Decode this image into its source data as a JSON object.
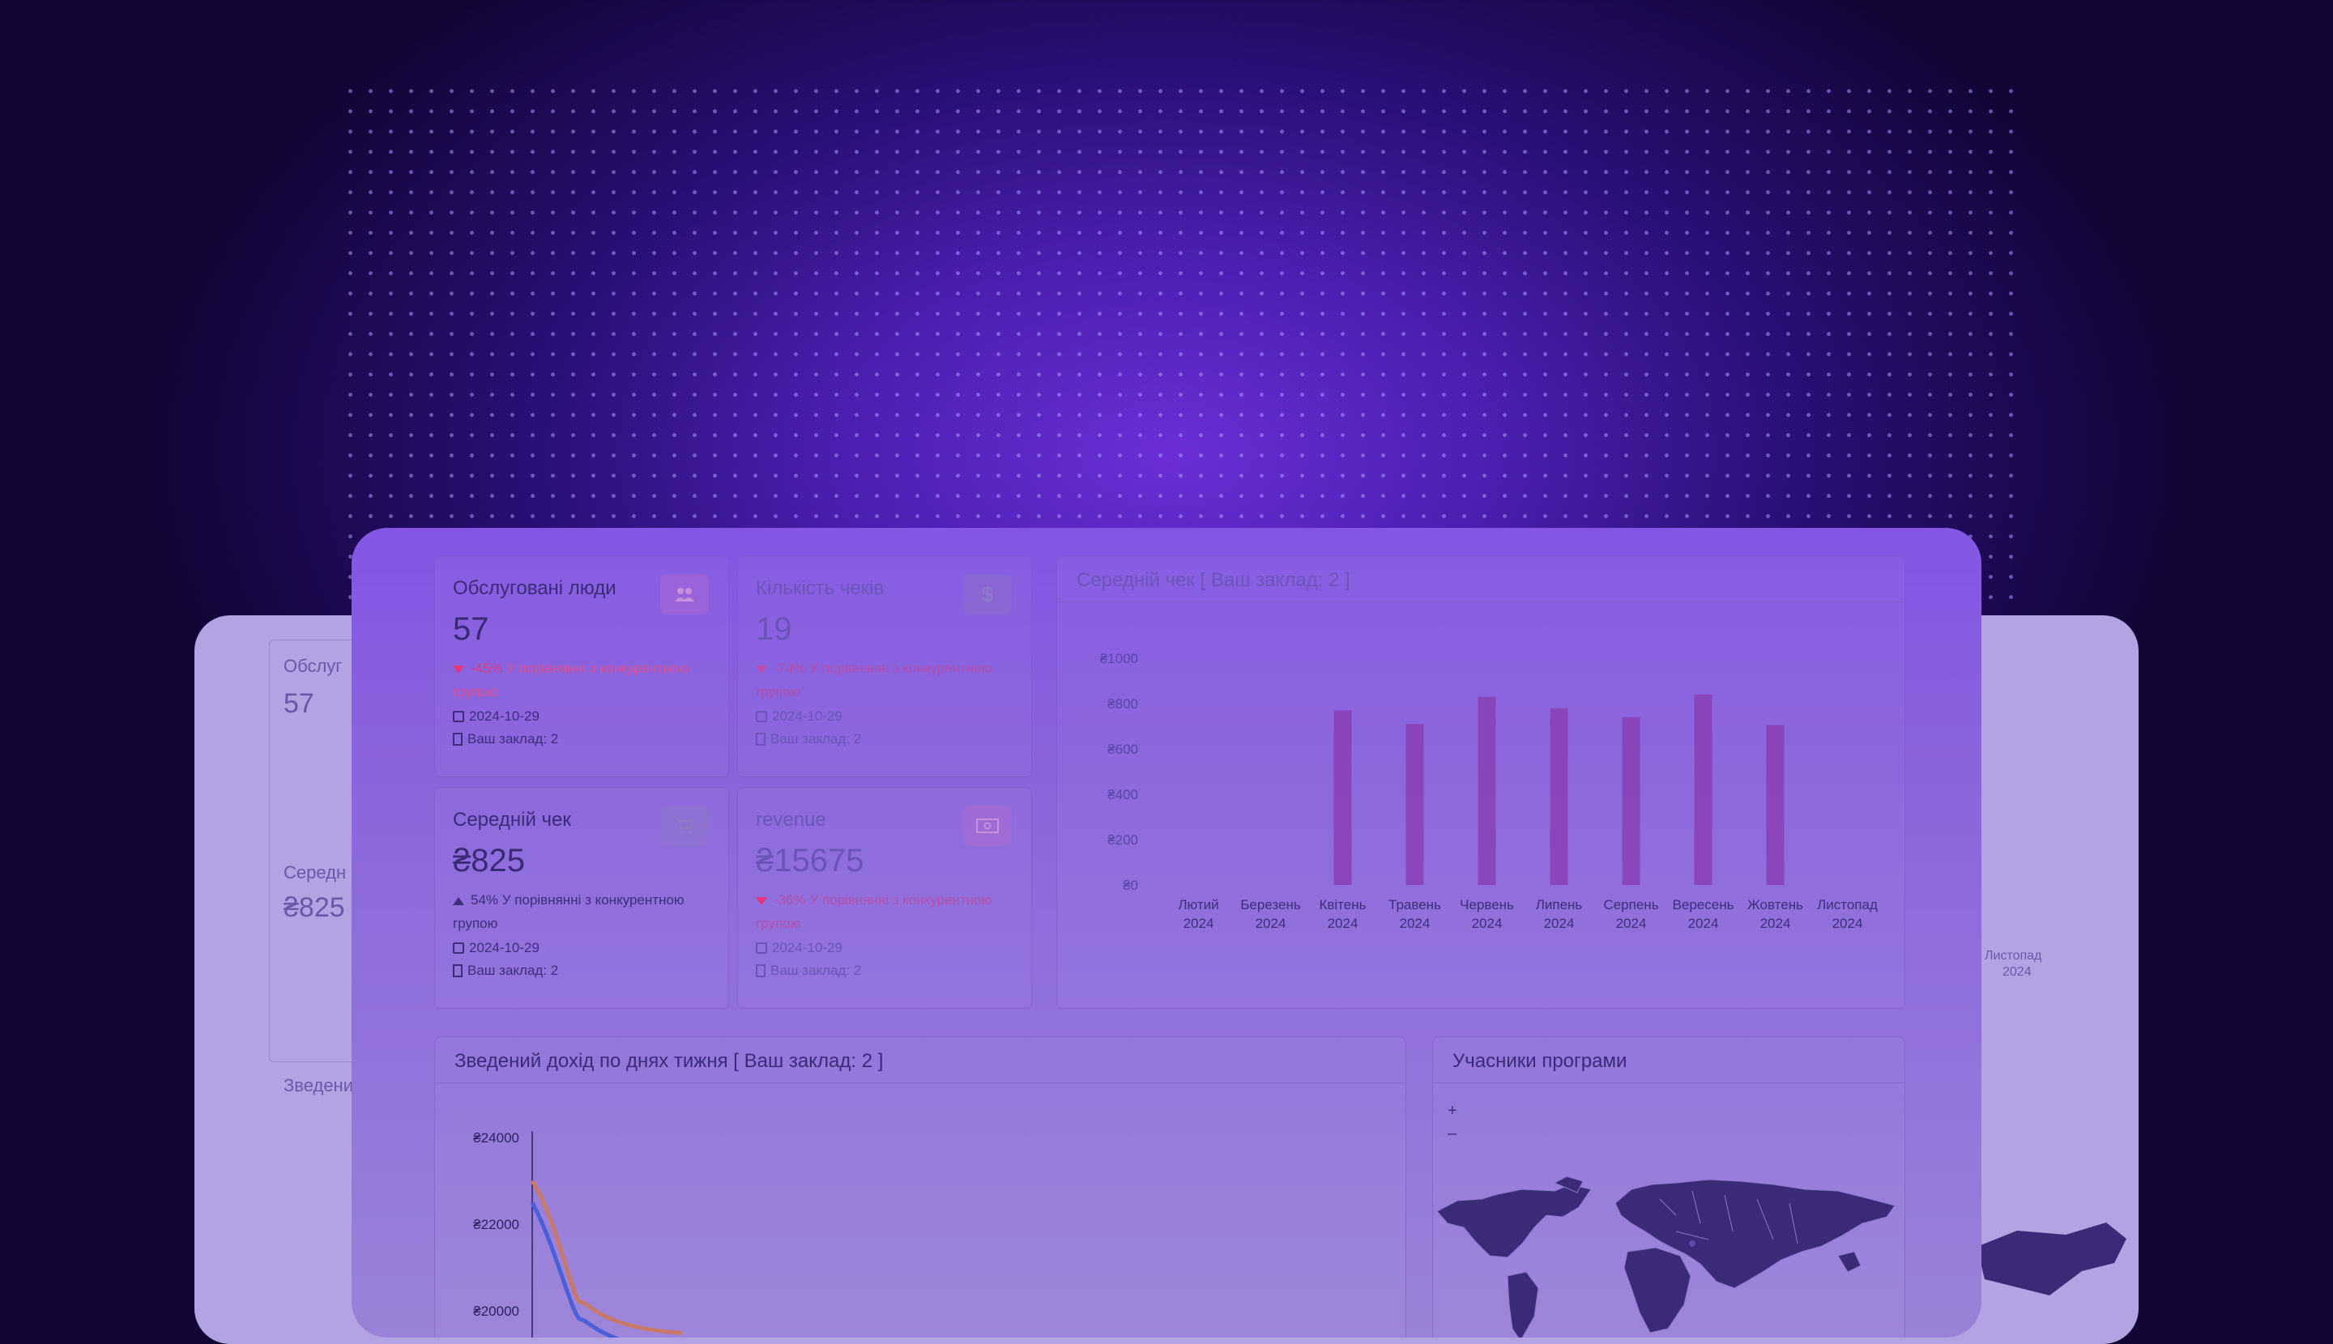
{
  "colors": {
    "bg_accent": "#6a2fd6",
    "bar_color": "#8a3fb4",
    "line_orange": "#c87a6a",
    "line_blue": "#4b5fd8",
    "negative": "#e8367a",
    "map_land": "#3a2a78"
  },
  "kpis": [
    {
      "title": "Обслуговані люди",
      "value": "57",
      "direction": "down",
      "pct": "-45%",
      "delta_text": "У порівнянні з конкурентною групою",
      "date": "2024-10-29",
      "venue": "Ваш заклад: 2",
      "icon": "people-icon"
    },
    {
      "title": "Кількість чеків",
      "value": "19",
      "direction": "down",
      "pct": "-74%",
      "delta_text": "У порівнянні з конкурентною групою",
      "date": "2024-10-29",
      "venue": "Ваш заклад: 2",
      "icon": "dollar-icon"
    },
    {
      "title": "Середній чек",
      "value": "₴825",
      "direction": "up",
      "pct": "54%",
      "delta_text": "У порівнянні з конкурентною групою",
      "date": "2024-10-29",
      "venue": "Ваш заклад: 2",
      "icon": "cart-icon"
    },
    {
      "title": "revenue",
      "value": "₴15675",
      "direction": "down",
      "pct": "-36%",
      "delta_text": "У порівнянні з конкурентною групою",
      "date": "2024-10-29",
      "venue": "Ваш заклад: 2",
      "icon": "cash-icon"
    }
  ],
  "avg_check_card": {
    "title": "Середній чек [ Ваш заклад: 2 ]"
  },
  "weekly_card": {
    "title": "Зведений дохід по днях тижня [ Ваш заклад: 2 ]"
  },
  "map_card": {
    "title": "Учасники програми",
    "zoom_in": "+",
    "zoom_out": "–"
  },
  "background_panel": {
    "kpi1_title": "Обслуг",
    "kpi1_value": "57",
    "kpi2_title": "Середн",
    "kpi2_value": "₴825",
    "section_title": "Зведени",
    "last_month": "Листопад",
    "last_year": "2024"
  },
  "chart_data": [
    {
      "type": "bar",
      "title": "Середній чек [ Ваш заклад: 2 ]",
      "categories": [
        "Лютий 2024",
        "Березень 2024",
        "Квітень 2024",
        "Травень 2024",
        "Червень 2024",
        "Липень 2024",
        "Серпень 2024",
        "Вересень 2024",
        "Жовтень 2024",
        "Листопад 2024"
      ],
      "category_lines": [
        [
          "Лютий",
          "2024"
        ],
        [
          "Березень",
          "2024"
        ],
        [
          "Квітень",
          "2024"
        ],
        [
          "Травень",
          "2024"
        ],
        [
          "Червень",
          "2024"
        ],
        [
          "Липень",
          "2024"
        ],
        [
          "Серпень",
          "2024"
        ],
        [
          "Вересень",
          "2024"
        ],
        [
          "Жовтень",
          "2024"
        ],
        [
          "Листопад",
          "2024"
        ]
      ],
      "values": [
        0,
        0,
        770,
        710,
        830,
        780,
        740,
        840,
        705,
        0
      ],
      "yticks": [
        "₴0",
        "₴200",
        "₴400",
        "₴600",
        "₴800",
        "₴1000"
      ],
      "ylim": [
        0,
        1000
      ],
      "grid": false
    },
    {
      "type": "line",
      "title": "Зведений дохід по днях тижня [ Ваш заклад: 2 ]",
      "yticks": [
        "₴24000",
        "₴22000",
        "₴20000"
      ],
      "ylim": [
        20000,
        24000
      ],
      "series": [
        {
          "color": "orange",
          "values": [
            23000,
            22150,
            20200,
            19600
          ]
        },
        {
          "color": "blue",
          "values": [
            22500,
            21450,
            19800,
            19200
          ]
        }
      ]
    }
  ]
}
